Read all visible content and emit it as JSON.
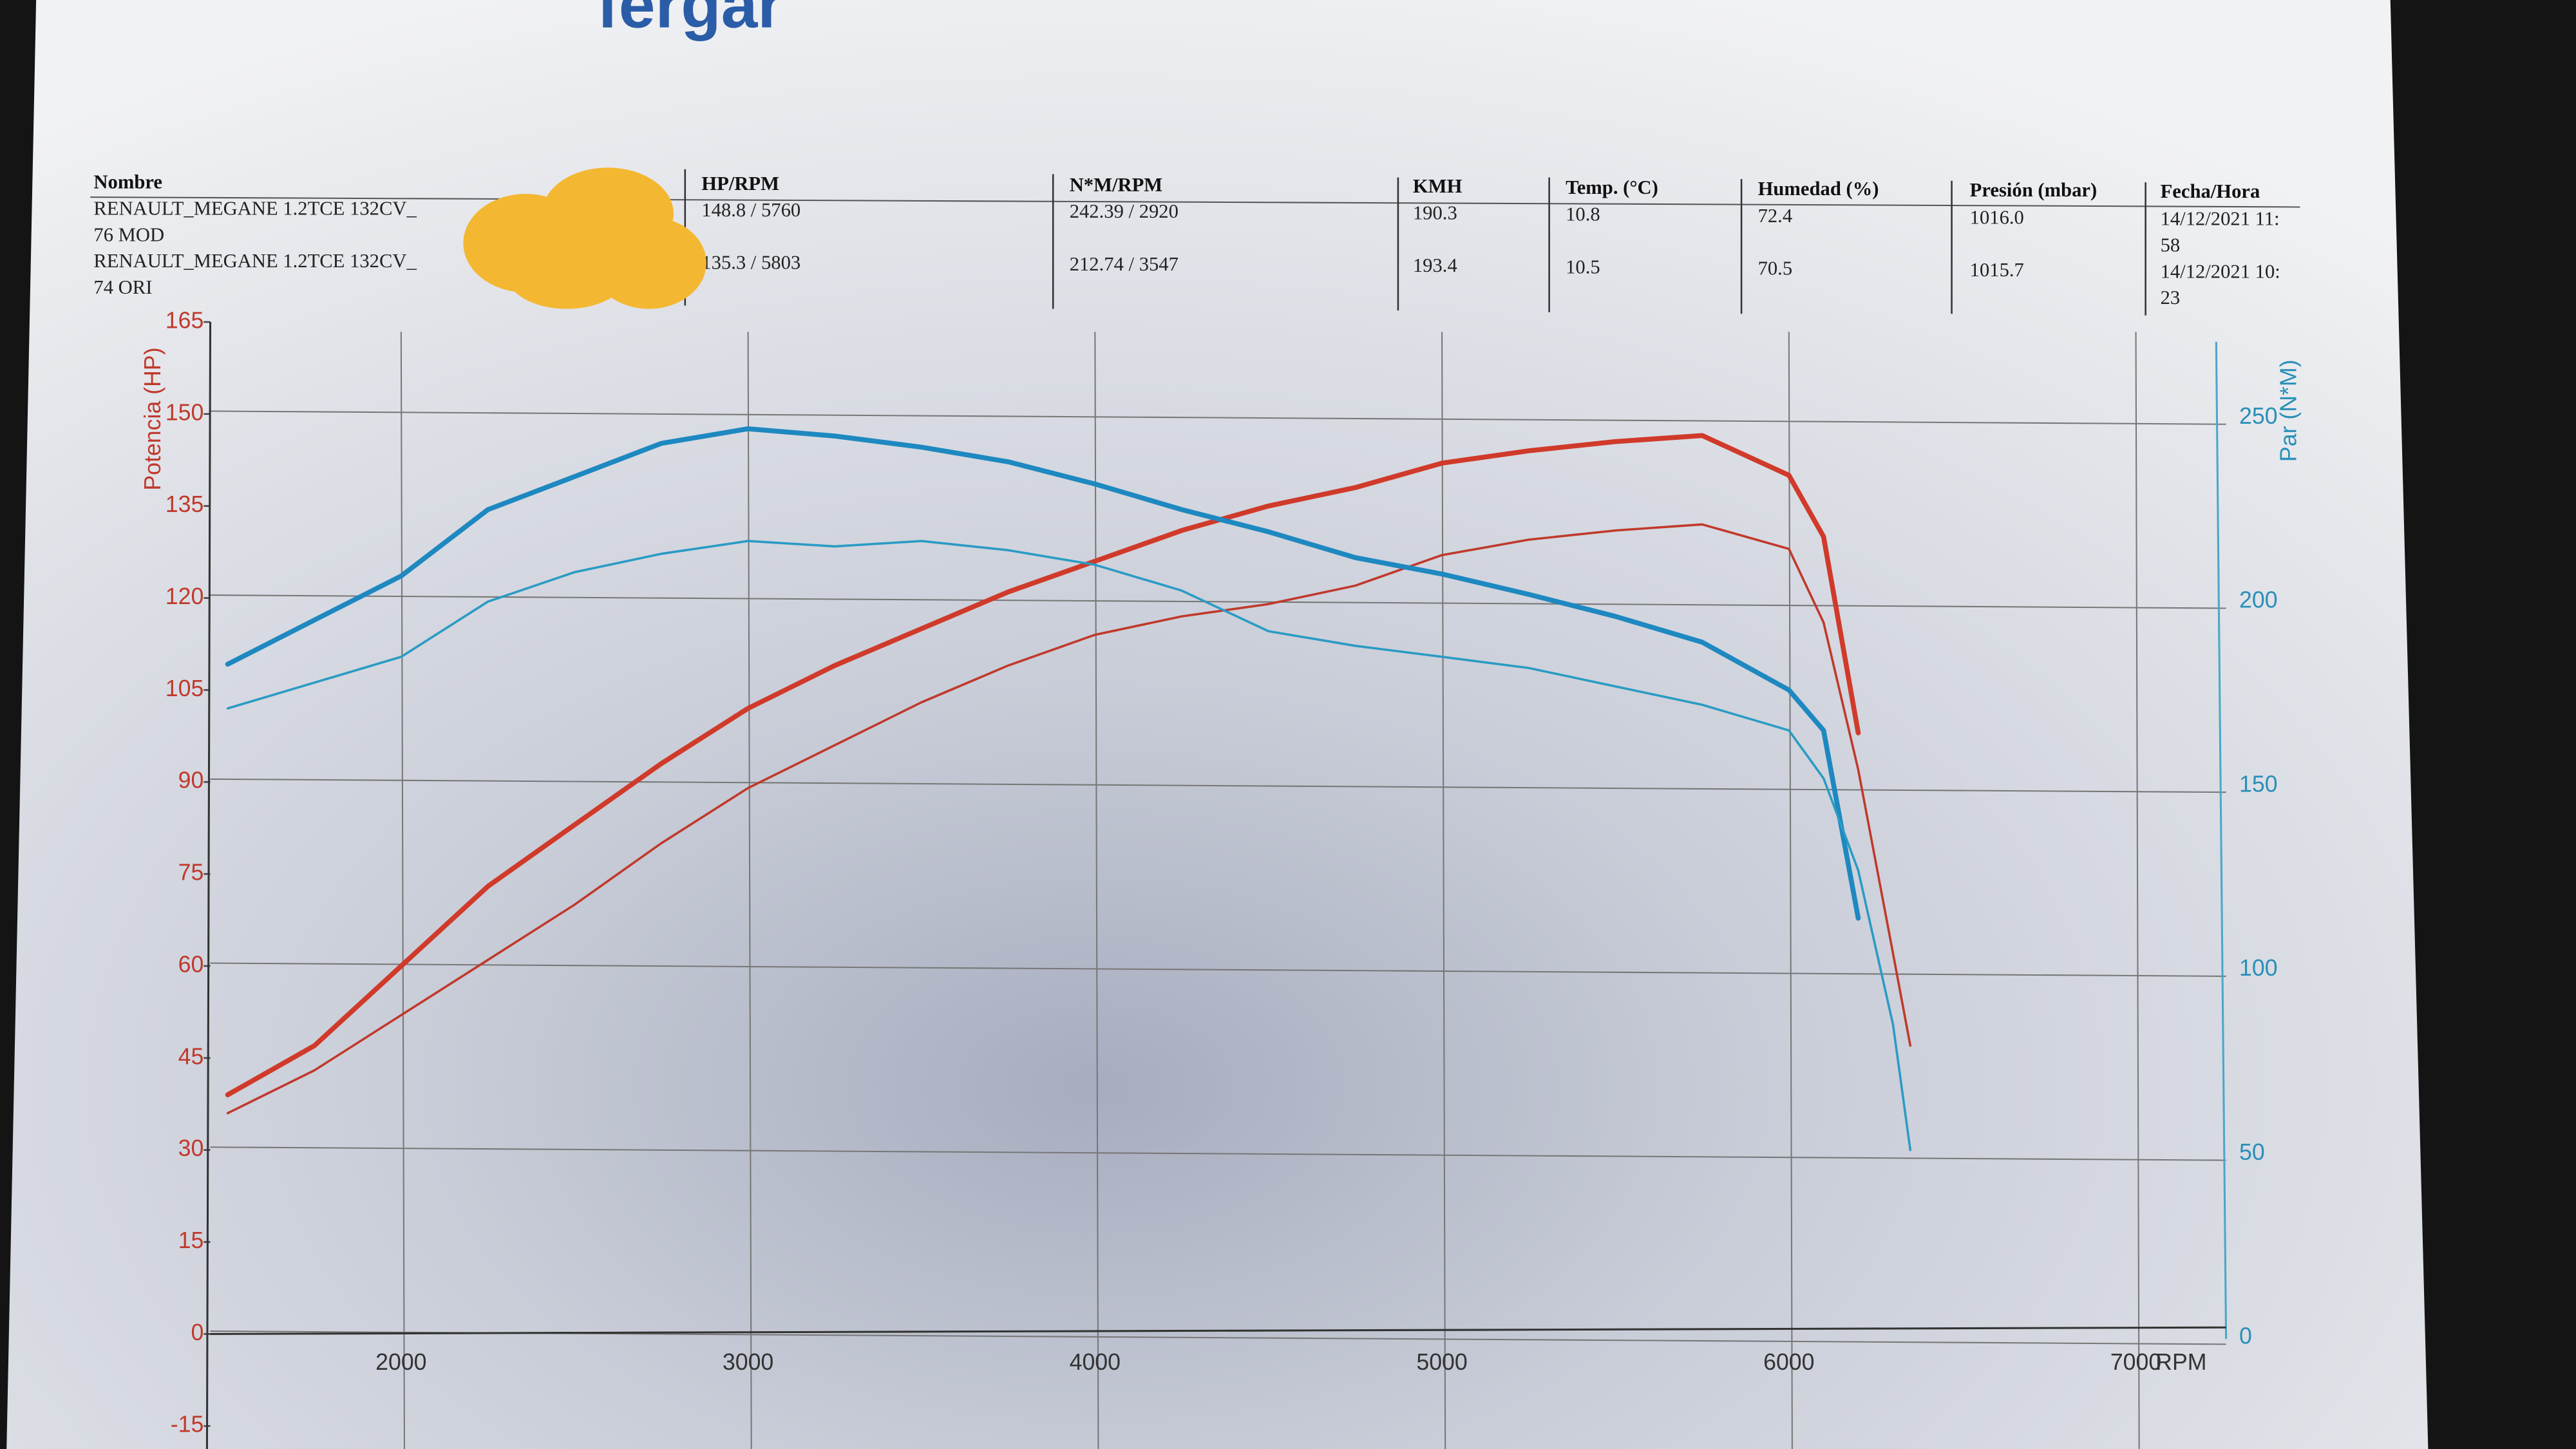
{
  "header": {
    "logo": "fergar",
    "columns": [
      "Nombre",
      "HP/RPM",
      "N*M/RPM",
      "KMH",
      "Temp. (°C)",
      "Humedad (%)",
      "Presión (mbar)",
      "Fecha/Hora"
    ],
    "rows": [
      [
        [
          "RENAULT_MEGANE 1.2TCE 132CV_",
          "76 MOD"
        ],
        "148.8 / 5760",
        "242.39 / 2920",
        "190.3",
        "10.8",
        "72.4",
        "1016.0",
        [
          "14/12/2021 11:",
          "58"
        ]
      ],
      [
        [
          "RENAULT_MEGANE 1.2TCE 132CV_",
          "74 ORI"
        ],
        "135.3 / 5803",
        "212.74 / 3547",
        "193.4",
        "10.5",
        "70.5",
        "1015.7",
        [
          "14/12/2021 10:",
          "23"
        ]
      ]
    ]
  },
  "chart_data": {
    "type": "line",
    "y_label": "Potencia (HP)",
    "y2_label": "Par (N*M)",
    "x_label": "RPM",
    "x": [
      1500,
      1750,
      2000,
      2250,
      2500,
      2750,
      3000,
      3250,
      3500,
      3750,
      4000,
      4250,
      4500,
      4750,
      5000,
      5250,
      5500,
      5750,
      6000,
      6100,
      6200,
      6300,
      6350
    ],
    "xlim": [
      1450,
      7260
    ],
    "xticks": [
      2000,
      3000,
      4000,
      5000,
      6000,
      7000
    ],
    "ylim": [
      -15,
      165
    ],
    "yticks": [
      -15,
      0,
      15,
      30,
      45,
      60,
      75,
      90,
      105,
      120,
      135,
      150,
      165
    ],
    "y2lim": [
      -24,
      276
    ],
    "y2ticks": [
      0,
      50,
      100,
      150,
      200,
      250
    ],
    "grid": true,
    "y_color": "#c0392b",
    "y2_color": "#2a8fb8",
    "series": [
      {
        "color": "#d03a2a",
        "weight": "bold",
        "values": [
          39,
          47,
          60,
          73,
          83,
          93,
          102,
          109,
          115,
          121,
          126,
          131,
          135,
          138,
          142,
          144,
          145.5,
          146.5,
          140,
          130,
          98,
          null,
          null
        ]
      },
      {
        "color": "#c0392b",
        "weight": "normal",
        "values": [
          36,
          43,
          52,
          61,
          70,
          80,
          89,
          96,
          103,
          109,
          114,
          117,
          119,
          122,
          127,
          129.5,
          131,
          132,
          128,
          116,
          92,
          62,
          47
        ]
      },
      {
        "color": "#1e88c0",
        "weight": "bold",
        "axis": "y2",
        "values": [
          183,
          195,
          207,
          225,
          234,
          243,
          247,
          245,
          242,
          238,
          232,
          225,
          219,
          212,
          207.5,
          202,
          196,
          189,
          176,
          165,
          114,
          null,
          null
        ]
      },
      {
        "color": "#2a9bc4",
        "weight": "normal",
        "axis": "y2",
        "values": [
          171,
          178,
          185,
          200,
          208,
          213,
          216.5,
          215,
          216.5,
          214,
          210,
          203,
          192,
          188,
          185,
          182,
          177,
          172,
          165,
          152,
          127,
          85,
          51
        ]
      }
    ]
  }
}
